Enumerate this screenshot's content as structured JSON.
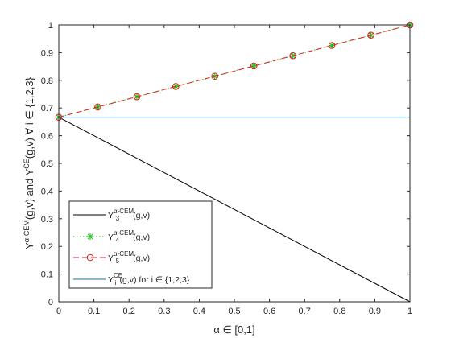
{
  "chart_data": {
    "type": "line",
    "xlabel": "α ∈ [0,1]",
    "ylabel": "Y_i^{α-CEM}(g,v) and Y_i^{CE}(g,v) ∀ i ∈ {1,2,3}",
    "xlim": [
      0,
      1
    ],
    "ylim": [
      0,
      1
    ],
    "xticks": [
      "0",
      "0.1",
      "0.2",
      "0.3",
      "0.4",
      "0.5",
      "0.6",
      "0.7",
      "0.8",
      "0.9",
      "1"
    ],
    "yticks": [
      "0",
      "0.1",
      "0.2",
      "0.3",
      "0.4",
      "0.5",
      "0.6",
      "0.7",
      "0.8",
      "0.9",
      "1"
    ],
    "grid": false,
    "legend_position": "bottom-left",
    "series": [
      {
        "name": "Y3^{α-CEM}(g,v)",
        "color": "#000000",
        "line_style": "solid",
        "marker": "none",
        "x": [
          0,
          1
        ],
        "y": [
          0.6667,
          0
        ]
      },
      {
        "name": "Y4^{α-CEM}(g,v)",
        "color": "#22c022",
        "line_style": "dotted",
        "marker": "asterisk",
        "x": [
          0,
          0.1111,
          0.2222,
          0.3333,
          0.4444,
          0.5556,
          0.6667,
          0.7778,
          0.8889,
          1
        ],
        "y": [
          0.6667,
          0.7037,
          0.7407,
          0.7778,
          0.8148,
          0.8519,
          0.8889,
          0.9259,
          0.963,
          1
        ]
      },
      {
        "name": "Y5^{α-CEM}(g,v)",
        "color": "#e02020",
        "line_style": "dashed",
        "marker": "circle",
        "x": [
          0,
          0.1111,
          0.2222,
          0.3333,
          0.4444,
          0.5556,
          0.6667,
          0.7778,
          0.8889,
          1
        ],
        "y": [
          0.6667,
          0.7037,
          0.7407,
          0.7778,
          0.8148,
          0.8519,
          0.8889,
          0.9259,
          0.963,
          1
        ]
      },
      {
        "name": "Yi^{CE}(g,v) for i ∈ {1,2,3}",
        "color": "#1f6f9a",
        "line_style": "solid",
        "marker": "none",
        "x": [
          0,
          1
        ],
        "y": [
          0.6667,
          0.6667
        ]
      }
    ]
  }
}
